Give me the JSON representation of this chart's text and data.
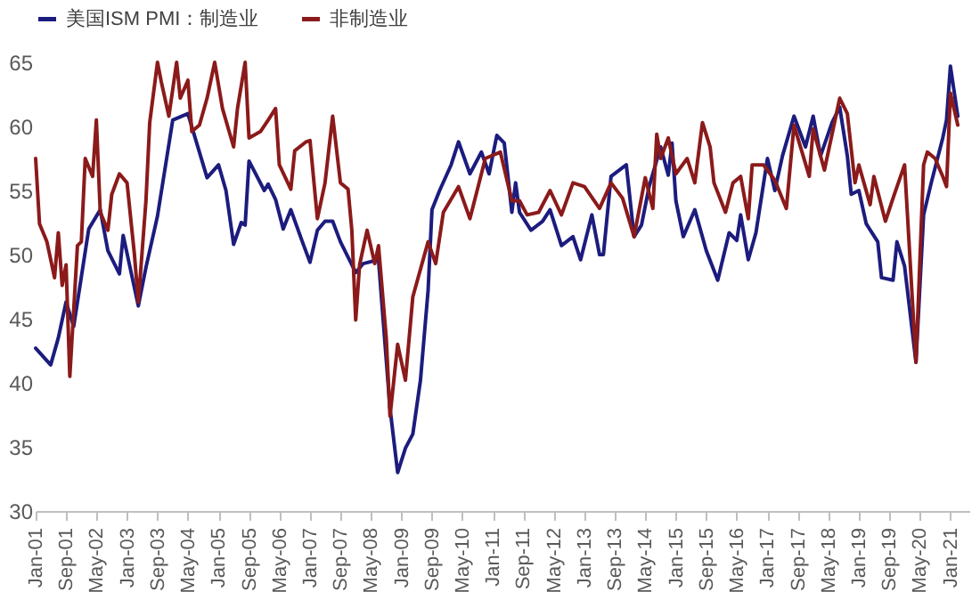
{
  "chart_data": {
    "type": "line",
    "legend": "top",
    "marker": "none",
    "line_style": "solid",
    "grid": false,
    "ylim": [
      30,
      65
    ],
    "yticks": [
      30,
      35,
      40,
      45,
      50,
      55,
      60,
      65
    ],
    "xlim": [
      "2001-01",
      "2021-06"
    ],
    "xticks": [
      {
        "value": "2001-01",
        "label": "Jan-01"
      },
      {
        "value": "2001-09",
        "label": "Sep-01"
      },
      {
        "value": "2002-05",
        "label": "May-02"
      },
      {
        "value": "2003-01",
        "label": "Jan-03"
      },
      {
        "value": "2003-09",
        "label": "Sep-03"
      },
      {
        "value": "2004-05",
        "label": "May-04"
      },
      {
        "value": "2005-01",
        "label": "Jan-05"
      },
      {
        "value": "2005-09",
        "label": "Sep-05"
      },
      {
        "value": "2006-05",
        "label": "May-06"
      },
      {
        "value": "2007-01",
        "label": "Jan-07"
      },
      {
        "value": "2007-09",
        "label": "Sep-07"
      },
      {
        "value": "2008-05",
        "label": "May-08"
      },
      {
        "value": "2009-01",
        "label": "Jan-09"
      },
      {
        "value": "2009-09",
        "label": "Sep-09"
      },
      {
        "value": "2010-05",
        "label": "May-10"
      },
      {
        "value": "2011-01",
        "label": "Jan-11"
      },
      {
        "value": "2011-09",
        "label": "Sep-11"
      },
      {
        "value": "2012-05",
        "label": "May-12"
      },
      {
        "value": "2013-01",
        "label": "Jan-13"
      },
      {
        "value": "2013-09",
        "label": "Sep-13"
      },
      {
        "value": "2014-05",
        "label": "May-14"
      },
      {
        "value": "2015-01",
        "label": "Jan-15"
      },
      {
        "value": "2015-09",
        "label": "Sep-15"
      },
      {
        "value": "2016-05",
        "label": "May-16"
      },
      {
        "value": "2017-01",
        "label": "Jan-17"
      },
      {
        "value": "2017-09",
        "label": "Sep-17"
      },
      {
        "value": "2018-05",
        "label": "May-18"
      },
      {
        "value": "2019-01",
        "label": "Jan-19"
      },
      {
        "value": "2019-09",
        "label": "Sep-19"
      },
      {
        "value": "2020-05",
        "label": "May-20"
      },
      {
        "value": "2021-01",
        "label": "Jan-21"
      }
    ],
    "series": [
      {
        "name": "美国ISM PMI：制造业",
        "color": "#1c1c7e",
        "x": [
          "2001-01",
          "2001-05",
          "2001-07",
          "2001-09",
          "2001-11",
          "2002-03",
          "2002-06",
          "2002-08",
          "2002-11",
          "2002-12",
          "2003-04",
          "2003-06",
          "2003-09",
          "2004-01",
          "2004-05",
          "2004-07",
          "2004-10",
          "2005-01",
          "2005-03",
          "2005-05",
          "2005-07",
          "2005-08",
          "2005-09",
          "2006-01",
          "2006-02",
          "2006-04",
          "2006-06",
          "2006-08",
          "2006-11",
          "2007-01",
          "2007-03",
          "2007-05",
          "2007-07",
          "2007-09",
          "2008-01",
          "2008-03",
          "2008-07",
          "2008-10",
          "2008-12",
          "2009-02",
          "2009-04",
          "2009-06",
          "2009-08",
          "2009-09",
          "2009-11",
          "2010-02",
          "2010-04",
          "2010-07",
          "2010-10",
          "2010-12",
          "2011-02",
          "2011-04",
          "2011-05",
          "2011-06",
          "2011-07",
          "2011-08",
          "2011-11",
          "2012-02",
          "2012-04",
          "2012-07",
          "2012-10",
          "2012-12",
          "2013-03",
          "2013-05",
          "2013-06",
          "2013-08",
          "2013-12",
          "2014-02",
          "2014-04",
          "2014-06",
          "2014-09",
          "2014-11",
          "2014-12",
          "2015-01",
          "2015-03",
          "2015-06",
          "2015-09",
          "2015-12",
          "2016-03",
          "2016-05",
          "2016-06",
          "2016-08",
          "2016-10",
          "2017-01",
          "2017-03",
          "2017-05",
          "2017-08",
          "2017-11",
          "2018-01",
          "2018-03",
          "2018-06",
          "2018-08",
          "2018-10",
          "2018-11",
          "2019-01",
          "2019-03",
          "2019-06",
          "2019-07",
          "2019-10",
          "2019-11",
          "2020-01",
          "2020-04",
          "2020-06",
          "2020-08",
          "2020-11",
          "2020-12",
          "2021-01",
          "2021-03"
        ],
        "values": [
          42.7,
          41.4,
          43.5,
          46.3,
          44.4,
          52,
          53.5,
          50.3,
          48.5,
          51.5,
          46,
          49,
          53,
          60.5,
          61,
          59,
          56,
          57,
          55,
          50.8,
          52.5,
          52.3,
          57.3,
          55,
          55.5,
          54.3,
          52,
          53.5,
          51,
          49.4,
          51.9,
          52.6,
          52.6,
          51,
          48.6,
          49.3,
          49.6,
          38,
          33,
          34.9,
          36,
          40.2,
          47.2,
          53.5,
          55,
          57,
          58.8,
          56.3,
          58,
          56.3,
          59.3,
          58.7,
          56.1,
          53.3,
          55.6,
          53.3,
          51.9,
          52.6,
          53.5,
          50.7,
          51.4,
          49.6,
          53.1,
          50,
          50,
          56.1,
          57,
          51.4,
          52.3,
          55.3,
          58.4,
          56.2,
          58.7,
          54.2,
          51.4,
          53.5,
          50.3,
          48,
          51.7,
          51.1,
          53.1,
          49.6,
          51.7,
          57.5,
          55,
          57.7,
          60.8,
          58.4,
          60.8,
          57.7,
          60.3,
          61.5,
          57.7,
          54.7,
          55,
          52.4,
          51,
          48.2,
          48,
          51,
          49.1,
          41.6,
          53.1,
          55.6,
          59.1,
          60.5,
          64.7,
          60.8
        ]
      },
      {
        "name": "非制造业",
        "color": "#8b1a1a",
        "x": [
          "2001-01",
          "2001-02",
          "2001-04",
          "2001-06",
          "2001-07",
          "2001-08",
          "2001-09",
          "2001-10",
          "2001-12",
          "2002-01",
          "2002-02",
          "2002-04",
          "2002-05",
          "2002-06",
          "2002-08",
          "2002-09",
          "2002-11",
          "2003-01",
          "2003-03",
          "2003-04",
          "2003-06",
          "2003-07",
          "2003-09",
          "2003-10",
          "2003-12",
          "2004-02",
          "2004-03",
          "2004-05",
          "2004-06",
          "2004-08",
          "2004-10",
          "2004-12",
          "2005-02",
          "2005-05",
          "2005-06",
          "2005-08",
          "2005-09",
          "2005-12",
          "2006-02",
          "2006-04",
          "2006-05",
          "2006-08",
          "2006-09",
          "2006-12",
          "2007-01",
          "2007-03",
          "2007-05",
          "2007-07",
          "2007-09",
          "2007-11",
          "2007-12",
          "2008-01",
          "2008-02",
          "2008-04",
          "2008-06",
          "2008-07",
          "2008-09",
          "2008-10",
          "2008-12",
          "2009-02",
          "2009-04",
          "2009-08",
          "2009-10",
          "2009-12",
          "2010-04",
          "2010-07",
          "2010-11",
          "2011-03",
          "2011-06",
          "2011-08",
          "2011-10",
          "2012-01",
          "2012-04",
          "2012-07",
          "2012-10",
          "2013-01",
          "2013-05",
          "2013-08",
          "2013-11",
          "2014-02",
          "2014-05",
          "2014-07",
          "2014-08",
          "2014-09",
          "2014-11",
          "2015-01",
          "2015-04",
          "2015-06",
          "2015-08",
          "2015-10",
          "2015-11",
          "2016-02",
          "2016-04",
          "2016-06",
          "2016-08",
          "2016-09",
          "2016-12",
          "2017-03",
          "2017-06",
          "2017-08",
          "2017-12",
          "2018-01",
          "2018-04",
          "2018-08",
          "2018-10",
          "2018-12",
          "2019-01",
          "2019-04",
          "2019-05",
          "2019-08",
          "2019-10",
          "2020-01",
          "2020-04",
          "2020-06",
          "2020-07",
          "2020-09",
          "2020-11",
          "2020-12",
          "2021-01",
          "2021-03"
        ],
        "values": [
          57.5,
          52.4,
          51,
          48.2,
          51.7,
          47.6,
          49.2,
          40.5,
          50.7,
          51,
          57.5,
          56.1,
          60.5,
          53.3,
          51.9,
          54.7,
          56.3,
          55.6,
          50,
          46.3,
          54.2,
          60.3,
          65,
          63.5,
          60.8,
          65,
          62.2,
          63.6,
          59.6,
          60.1,
          62.2,
          65,
          61.4,
          58.4,
          61.4,
          65,
          59.1,
          59.6,
          60.5,
          61.4,
          57,
          55.1,
          58.1,
          58.8,
          58.9,
          52.8,
          55.6,
          60.8,
          55.6,
          55.1,
          51.9,
          44.9,
          49.2,
          51.9,
          49.3,
          50.7,
          43.5,
          37.4,
          43,
          40.2,
          46.7,
          51,
          49.3,
          53.3,
          55.3,
          52.8,
          57.5,
          58,
          54.2,
          54.2,
          53.1,
          53.3,
          55,
          53.1,
          55.6,
          55.3,
          53.6,
          55.6,
          54.4,
          51.4,
          56,
          53.6,
          59.4,
          57.5,
          59.1,
          56.3,
          57.5,
          55.6,
          60.3,
          58.4,
          55.6,
          53.3,
          55.6,
          56.1,
          52.8,
          57,
          57,
          55.8,
          53.6,
          60.1,
          56.1,
          59.8,
          56.6,
          62.2,
          61,
          55.6,
          57,
          53.9,
          56.1,
          52.6,
          54.4,
          57,
          41.6,
          57,
          58,
          57.5,
          56.1,
          55.3,
          62.6,
          60.1
        ]
      }
    ]
  }
}
